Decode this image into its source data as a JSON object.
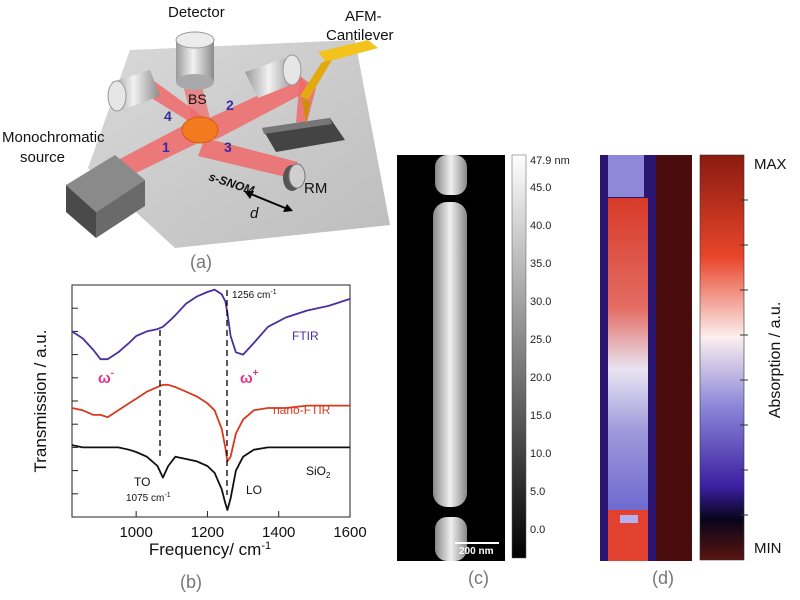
{
  "panel_a": {
    "caption": "(a)",
    "labels": {
      "detector": "Detector",
      "afm": "AFM-",
      "cantilever": "Cantilever",
      "bs": "BS",
      "mono1": "Monochromatic",
      "mono2": "source",
      "snom": "s-SNOM",
      "rm": "RM",
      "d": "d",
      "n1": "1",
      "n2": "2",
      "n3": "3",
      "n4": "4"
    }
  },
  "panel_b": {
    "caption": "(b)",
    "ft_label": "FTIR",
    "nano_label": "nano-FTIR",
    "sio2_main": "SiO",
    "sio2_sub": "2",
    "omega_base": "ω",
    "omega_minus": "-",
    "omega_plus": "+",
    "peak_label": "1256 cm",
    "to_label": "TO",
    "to_value": "1075 cm",
    "lo_label": "LO",
    "inv_sup": "-1",
    "colors": {
      "ftir": "#4a2fa0",
      "nano": "#d8391e",
      "sio2": "#111111",
      "omega": "#e0338a"
    }
  },
  "panel_c": {
    "caption": "(c)",
    "scalebar": "200 nm",
    "colorbar_ticks": [
      "47.9 nm",
      "45.0",
      "40.0",
      "35.0",
      "30.0",
      "25.0",
      "20.0",
      "15.0",
      "10.0",
      "5.0",
      "0.0"
    ]
  },
  "panel_d": {
    "caption": "(d)",
    "max": "MAX",
    "min": "MIN",
    "axis_label": "Absorption / a.u."
  },
  "chart_data": {
    "type": "line",
    "title": "",
    "xlabel": "Frequency/ cm-1",
    "ylabel": "Transmission / a.u.",
    "xlim": [
      820,
      1600
    ],
    "ylim": [
      0,
      1
    ],
    "x_ticks": [
      "1000",
      "1200",
      "1400",
      "1600"
    ],
    "x": [
      820,
      850,
      880,
      900,
      920,
      950,
      980,
      1000,
      1030,
      1060,
      1075,
      1090,
      1110,
      1140,
      1170,
      1200,
      1220,
      1240,
      1250,
      1256,
      1265,
      1280,
      1300,
      1330,
      1370,
      1420,
      1480,
      1540,
      1600
    ],
    "series": [
      {
        "name": "FTIR",
        "values": [
          0.8,
          0.77,
          0.72,
          0.68,
          0.68,
          0.71,
          0.75,
          0.78,
          0.8,
          0.81,
          0.82,
          0.84,
          0.87,
          0.92,
          0.95,
          0.97,
          0.98,
          0.96,
          0.93,
          0.88,
          0.78,
          0.71,
          0.7,
          0.75,
          0.82,
          0.86,
          0.89,
          0.91,
          0.94
        ]
      },
      {
        "name": "nano-FTIR",
        "values": [
          0.47,
          0.46,
          0.44,
          0.44,
          0.43,
          0.46,
          0.49,
          0.51,
          0.54,
          0.56,
          0.57,
          0.57,
          0.56,
          0.54,
          0.52,
          0.49,
          0.46,
          0.38,
          0.3,
          0.24,
          0.26,
          0.36,
          0.42,
          0.46,
          0.47,
          0.47,
          0.48,
          0.48,
          0.48
        ]
      },
      {
        "name": "SiO2",
        "values": [
          0.31,
          0.3,
          0.3,
          0.3,
          0.3,
          0.3,
          0.29,
          0.28,
          0.26,
          0.22,
          0.17,
          0.22,
          0.26,
          0.25,
          0.24,
          0.22,
          0.19,
          0.12,
          0.06,
          0.03,
          0.08,
          0.2,
          0.26,
          0.29,
          0.3,
          0.3,
          0.3,
          0.3,
          0.3
        ]
      }
    ],
    "annotations": [
      "1256 cm-1",
      "TO 1075 cm-1",
      "LO",
      "ω-",
      "ω+"
    ]
  }
}
